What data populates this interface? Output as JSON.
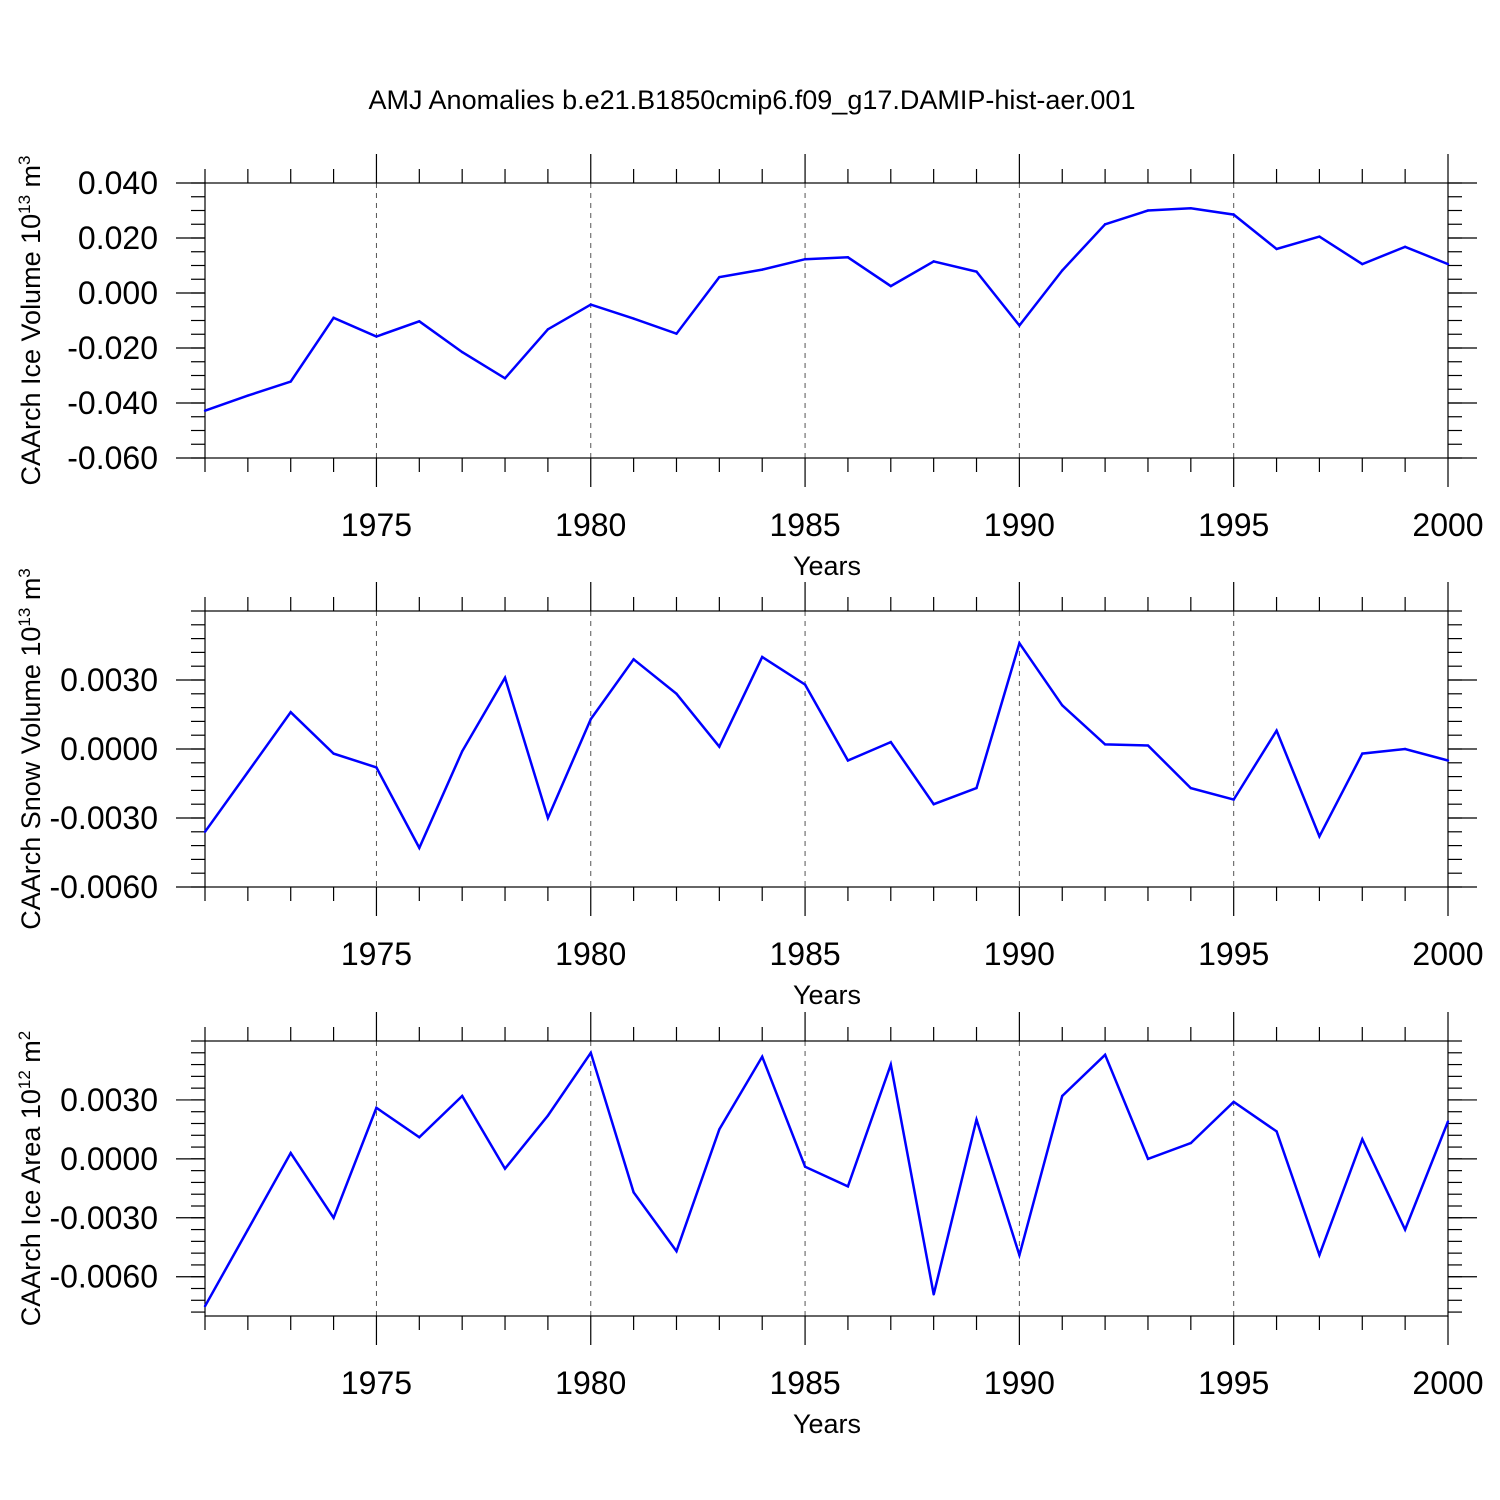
{
  "title": "AMJ Anomalies b.e21.B1850cmip6.f09_g17.DAMIP-hist-aer.001",
  "colors": {
    "series": "#0000ff",
    "grid": "#555555",
    "axis": "#000000"
  },
  "chart_data": [
    {
      "type": "line",
      "ylabel": "CAArch Ice Volume 10",
      "ylabel_exp": "13",
      "ylabel_unit": " m",
      "ylabel_unit_exp": "3",
      "xlabel": "Years",
      "xlim": [
        1971,
        2000
      ],
      "ylim": [
        -0.06,
        0.04
      ],
      "yticks": [
        -0.06,
        -0.04,
        -0.02,
        0.0,
        0.02,
        0.04
      ],
      "ytick_labels": [
        "-0.060",
        "-0.040",
        "-0.020",
        "0.000",
        "0.020",
        "0.040"
      ],
      "yminor_step": 0.005,
      "xticks": [
        1975,
        1980,
        1985,
        1990,
        1995,
        2000
      ],
      "xtick_labels": [
        "1975",
        "1980",
        "1985",
        "1990",
        "1995",
        "2000"
      ],
      "grid": "vertical dashed at major x ticks",
      "x": [
        1971,
        1972,
        1973,
        1974,
        1975,
        1976,
        1977,
        1978,
        1979,
        1980,
        1981,
        1982,
        1983,
        1984,
        1985,
        1986,
        1987,
        1988,
        1989,
        1990,
        1991,
        1992,
        1993,
        1994,
        1995,
        1996,
        1997,
        1998,
        1999,
        2000
      ],
      "values": [
        -0.0428,
        -0.0373,
        -0.0322,
        -0.009,
        -0.0158,
        -0.0103,
        -0.0215,
        -0.031,
        -0.0132,
        -0.0042,
        -0.0093,
        -0.0148,
        0.0058,
        0.0085,
        0.0123,
        0.013,
        0.0025,
        0.0115,
        0.0078,
        -0.0118,
        0.0082,
        0.025,
        0.03,
        0.0308,
        0.0285,
        0.016,
        0.0205,
        0.0105,
        0.0168,
        0.0105
      ]
    },
    {
      "type": "line",
      "ylabel": "CAArch Snow Volume 10",
      "ylabel_exp": "13",
      "ylabel_unit": " m",
      "ylabel_unit_exp": "3",
      "xlabel": "Years",
      "xlim": [
        1971,
        2000
      ],
      "ylim": [
        -0.006,
        0.006
      ],
      "yticks": [
        -0.006,
        -0.003,
        0.0,
        0.003
      ],
      "ytick_labels": [
        "-0.0060",
        "-0.0030",
        "0.0000",
        "0.0030"
      ],
      "yminor_step": 0.0006,
      "xticks": [
        1975,
        1980,
        1985,
        1990,
        1995,
        2000
      ],
      "xtick_labels": [
        "1975",
        "1980",
        "1985",
        "1990",
        "1995",
        "2000"
      ],
      "grid": "vertical dashed at major x ticks",
      "x": [
        1971,
        1972,
        1973,
        1974,
        1975,
        1976,
        1977,
        1978,
        1979,
        1980,
        1981,
        1982,
        1983,
        1984,
        1985,
        1986,
        1987,
        1988,
        1989,
        1990,
        1991,
        1992,
        1993,
        1994,
        1995,
        1996,
        1997,
        1998,
        1999,
        2000
      ],
      "values": [
        -0.0036,
        -0.001,
        0.0016,
        -0.0002,
        -0.0008,
        -0.0043,
        -0.0001,
        0.0031,
        -0.003,
        0.0013,
        0.0039,
        0.0024,
        0.0001,
        0.004,
        0.0028,
        -0.0005,
        0.0003,
        -0.0024,
        -0.0017,
        0.0046,
        0.0019,
        0.0002,
        0.00015,
        -0.0017,
        -0.0022,
        0.0008,
        -0.0038,
        -0.0002,
        0.0,
        -0.0005
      ]
    },
    {
      "type": "line",
      "ylabel": "CAArch Ice Area 10",
      "ylabel_exp": "12",
      "ylabel_unit": " m",
      "ylabel_unit_exp": "2",
      "xlabel": "Years",
      "xlim": [
        1971,
        2000
      ],
      "ylim": [
        -0.008,
        0.006
      ],
      "yticks": [
        -0.006,
        -0.003,
        0.0,
        0.003
      ],
      "ytick_labels": [
        "-0.0060",
        "-0.0030",
        "0.0000",
        "0.0030"
      ],
      "yminor_step": 0.0006,
      "xticks": [
        1975,
        1980,
        1985,
        1990,
        1995,
        2000
      ],
      "xtick_labels": [
        "1975",
        "1980",
        "1985",
        "1990",
        "1995",
        "2000"
      ],
      "grid": "vertical dashed at major x ticks",
      "x": [
        1971,
        1972,
        1973,
        1974,
        1975,
        1976,
        1977,
        1978,
        1979,
        1980,
        1981,
        1982,
        1983,
        1984,
        1985,
        1986,
        1987,
        1988,
        1989,
        1990,
        1991,
        1992,
        1993,
        1994,
        1995,
        1996,
        1997,
        1998,
        1999,
        2000
      ],
      "values": [
        -0.0075,
        -0.0036,
        0.0003,
        -0.003,
        0.0026,
        0.0011,
        0.0032,
        -0.0005,
        0.0022,
        0.0054,
        -0.0017,
        -0.0047,
        0.0015,
        0.0052,
        -0.0004,
        -0.0014,
        0.0048,
        -0.0069,
        0.002,
        -0.0049,
        0.0032,
        0.0053,
        0.0,
        0.0008,
        0.0029,
        0.0014,
        -0.0049,
        0.001,
        -0.0036,
        0.0019
      ]
    }
  ]
}
